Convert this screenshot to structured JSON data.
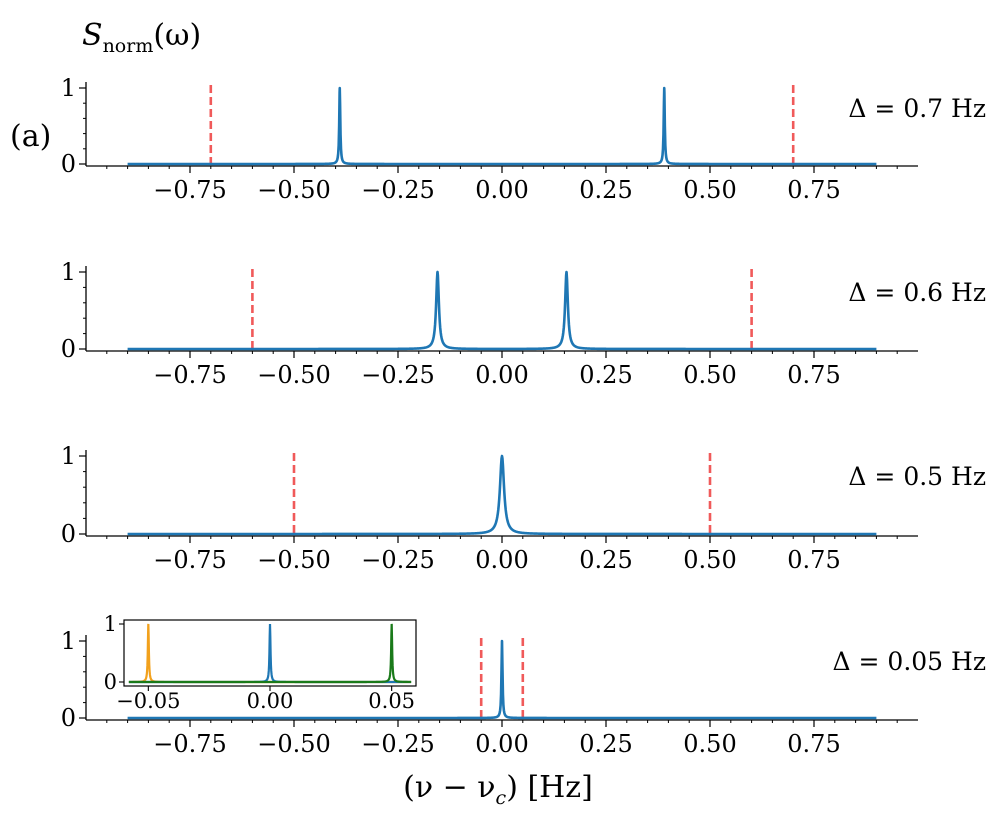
{
  "figure": {
    "panel_label": "(a)",
    "ylabel_main": "S",
    "ylabel_sub": "norm",
    "ylabel_arg": "(ω)",
    "xlabel": "(ν − ν",
    "xlabel_sub": "c",
    "xlabel_tail": ") [Hz]"
  },
  "colors": {
    "spectrum": "#1f77b4",
    "marker": "#f05a5a",
    "inset_left": "#f2a11c",
    "inset_right": "#1a7a1a"
  },
  "chart_data": [
    {
      "type": "line",
      "delta_label": "Δ = 0.7 Hz",
      "xlim": [
        -1.0,
        1.0
      ],
      "x_range": [
        -0.9,
        0.9
      ],
      "ylim": [
        0,
        1
      ],
      "yticks": [
        "0",
        "1"
      ],
      "xtick_values": [
        -0.75,
        -0.5,
        -0.25,
        0.0,
        0.25,
        0.5,
        0.75
      ],
      "xtick_labels": [
        "−0.75",
        "−0.50",
        "−0.25",
        "0.00",
        "0.25",
        "0.50",
        "0.75"
      ],
      "peaks": [
        -0.39,
        0.39
      ],
      "peak_width": 0.0015,
      "dashed_lines": [
        -0.7,
        0.7
      ]
    },
    {
      "type": "line",
      "delta_label": "Δ = 0.6 Hz",
      "xlim": [
        -1.0,
        1.0
      ],
      "x_range": [
        -0.9,
        0.9
      ],
      "ylim": [
        0,
        1
      ],
      "yticks": [
        "0",
        "1"
      ],
      "xtick_values": [
        -0.75,
        -0.5,
        -0.25,
        0.0,
        0.25,
        0.5,
        0.75
      ],
      "xtick_labels": [
        "−0.75",
        "−0.50",
        "−0.25",
        "0.00",
        "0.25",
        "0.50",
        "0.75"
      ],
      "peaks": [
        -0.155,
        0.155
      ],
      "peak_width": 0.004,
      "dashed_lines": [
        -0.6,
        0.6
      ]
    },
    {
      "type": "line",
      "delta_label": "Δ = 0.5 Hz",
      "xlim": [
        -1.0,
        1.0
      ],
      "x_range": [
        -0.9,
        0.9
      ],
      "ylim": [
        0,
        1
      ],
      "yticks": [
        "0",
        "1"
      ],
      "xtick_values": [
        -0.75,
        -0.5,
        -0.25,
        0.0,
        0.25,
        0.5,
        0.75
      ],
      "xtick_labels": [
        "−0.75",
        "−0.50",
        "−0.25",
        "0.00",
        "0.25",
        "0.50",
        "0.75"
      ],
      "peaks": [
        0.0
      ],
      "peak_width": 0.006,
      "dashed_lines": [
        -0.5,
        0.5
      ]
    },
    {
      "type": "line",
      "delta_label": "Δ = 0.05 Hz",
      "xlim": [
        -1.0,
        1.0
      ],
      "x_range": [
        -0.9,
        0.9
      ],
      "ylim": [
        0,
        1
      ],
      "yticks": [
        "0",
        "1"
      ],
      "xtick_values": [
        -0.75,
        -0.5,
        -0.25,
        0.0,
        0.25,
        0.5,
        0.75
      ],
      "xtick_labels": [
        "−0.75",
        "−0.50",
        "−0.25",
        "0.00",
        "0.25",
        "0.50",
        "0.75"
      ],
      "peaks": [
        0.0
      ],
      "peak_width": 0.0015,
      "dashed_lines": [
        -0.05,
        0.05
      ],
      "inset": {
        "xlim": [
          -0.06,
          0.06
        ],
        "ylim": [
          0,
          1
        ],
        "yticks": [
          "0",
          "1"
        ],
        "xtick_values": [
          -0.05,
          0.0,
          0.05
        ],
        "xtick_labels": [
          "−0.05",
          "0.00",
          "0.05"
        ],
        "series": [
          {
            "name": "left",
            "peak": -0.05,
            "color_key": "inset_left"
          },
          {
            "name": "center",
            "peak": 0.0,
            "color_key": "spectrum"
          },
          {
            "name": "right",
            "peak": 0.05,
            "color_key": "inset_right"
          }
        ],
        "peak_width": 0.00025
      }
    }
  ]
}
